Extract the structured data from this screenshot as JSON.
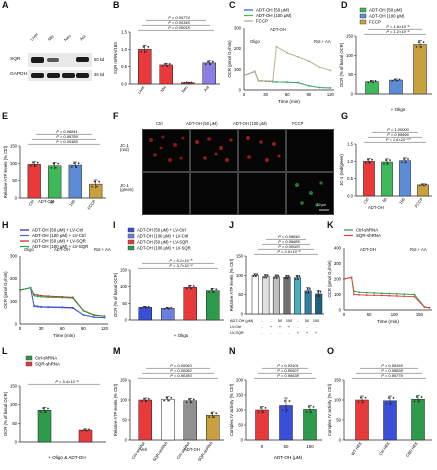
{
  "figure": {
    "panel_labels": [
      "A",
      "B",
      "C",
      "D",
      "E",
      "F",
      "G",
      "H",
      "I",
      "J",
      "K",
      "L",
      "M",
      "N",
      "O"
    ]
  },
  "panelA": {
    "lanes": [
      "Liver",
      "Mic",
      "Neu",
      "Ast"
    ],
    "rows": [
      "SQR",
      "GAPDH"
    ],
    "sizes": [
      "50 kd",
      "36 kd"
    ]
  },
  "panelF": {
    "columns": [
      "Ctrl",
      "ADT-OH (50 μM)",
      "ADT-OH (100 μM)",
      "FCCP"
    ],
    "rows": [
      "JC-1\n(red)",
      "JC-1\n(green)"
    ],
    "scale": "10 μm"
  },
  "annotations": {
    "oligo": "Oligo",
    "adtoh": "ADT-OH",
    "rotaa": "Rot + AA",
    "plus_oligo": "+ Oligo",
    "plus_oligo_adtoh": "+ Oligo & ADT-OH",
    "veh": "Veh",
    "adtoh_group": "ADT-OH",
    "adtoh_um": "ADT-OH (μM)",
    "lv_ctrl": "LV-Ctrl",
    "lv_sqr": "LV-SQR"
  },
  "chart_data": [
    {
      "panel": "B",
      "type": "bar",
      "categories": [
        "Liver",
        "Mic",
        "Neu",
        "Ast"
      ],
      "values": [
        1.0,
        0.55,
        0.04,
        0.61
      ],
      "errors": [
        0.12,
        0.05,
        0.01,
        0.06
      ],
      "colors": [
        "#e83a3a",
        "#e83a3a",
        "#e83a3a",
        "#8a7ee0"
      ],
      "ylabel": "SQR mRNA/18S",
      "ylim": [
        0,
        1.5
      ],
      "yticks": [
        "0.0",
        "0.5",
        "1.0",
        "1.5"
      ],
      "annotations": [
        "P = 0.00018",
        "P = 0.00345",
        "P = 0.00774"
      ]
    },
    {
      "panel": "C",
      "type": "line",
      "x": [
        0,
        15,
        20,
        25,
        30,
        35,
        40,
        45,
        60,
        75,
        90,
        105,
        120
      ],
      "series": [
        {
          "name": "ADT-OH (50 μM)",
          "color": "#3a4fd8",
          "values": [
            70,
            90,
            45,
            44,
            43,
            42,
            40,
            39,
            38,
            36,
            20,
            12,
            10
          ]
        },
        {
          "name": "ADT-OH (100 μM)",
          "color": "#3fb85a",
          "values": [
            70,
            90,
            45,
            44,
            43,
            42,
            40,
            39,
            37,
            35,
            20,
            12,
            10
          ]
        },
        {
          "name": "FCCP",
          "color": "#b8a887",
          "values": [
            70,
            90,
            45,
            44,
            43,
            42,
            44,
            210,
            180,
            160,
            140,
            110,
            95
          ]
        }
      ],
      "xlabel": "Time (min)",
      "ylabel": "OCR (pmol O₂/min)",
      "xticks": [
        "0",
        "30",
        "60",
        "90",
        "120"
      ],
      "yticks": [
        "0",
        "100",
        "200",
        "300"
      ],
      "ylim": [
        0,
        300
      ],
      "xlim": [
        0,
        125
      ]
    },
    {
      "panel": "D",
      "type": "bar",
      "categories": [
        "ADT-OH (50 μM)",
        "ADT-OH (100 μM)",
        "FCCP"
      ],
      "values": [
        32,
        36,
        128
      ],
      "errors": [
        3,
        3,
        10
      ],
      "colors": [
        "#3fb85a",
        "#5a8cd8",
        "#c8a040"
      ],
      "ylabel": "OCR (% of basal OCR)",
      "ylim": [
        0,
        150
      ],
      "yticks": [
        "0",
        "50",
        "100",
        "150"
      ],
      "annotations": [
        "P = 1.2×10⁻⁶",
        "P = 1.6×10⁻⁶"
      ],
      "xlabel": "+ Oligo"
    },
    {
      "panel": "E",
      "type": "bar",
      "categories": [
        "Ctrl",
        "50",
        "100",
        "FCCP"
      ],
      "values": [
        97,
        93,
        95,
        40
      ],
      "errors": [
        8,
        10,
        9,
        12
      ],
      "colors": [
        "#e83a3a",
        "#3fb85a",
        "#5a8cd8",
        "#c8a040"
      ],
      "ylabel": "Relative ATP levels (% Ctrl)",
      "ylim": [
        0,
        150
      ],
      "yticks": [
        "0",
        "50",
        "100",
        "150"
      ],
      "annotations": [
        "P = 0.00485",
        "P = 0.99789",
        "P = 0.96841"
      ]
    },
    {
      "panel": "G",
      "type": "bar",
      "categories": [
        "Ctrl",
        "50",
        "100",
        "FCCP"
      ],
      "values": [
        1.0,
        0.98,
        1.02,
        0.32
      ],
      "errors": [
        0.08,
        0.09,
        0.08,
        0.03
      ],
      "colors": [
        "#e83a3a",
        "#3fb85a",
        "#5a8cd8",
        "#c8a040"
      ],
      "ylabel": "JC-1 (red/green)",
      "ylim": [
        0,
        1.5
      ],
      "yticks": [
        "0.0",
        "0.5",
        "1.0",
        "1.5"
      ],
      "annotations": [
        "P = 1.6×10⁻¹⁰",
        "P = 0.99696",
        "P = 1.00000"
      ]
    },
    {
      "panel": "H",
      "type": "line",
      "x": [
        0,
        15,
        20,
        25,
        30,
        40,
        60,
        75,
        90,
        105,
        120
      ],
      "series": [
        {
          "name": "ADT-OH (50 μM) + LV-Ctrl",
          "color": "#2222aa",
          "values": [
            150,
            160,
            80,
            78,
            76,
            75,
            74,
            72,
            40,
            30,
            28
          ]
        },
        {
          "name": "ADT-OH (100 μM) + LV-Ctrl",
          "color": "#4466dd",
          "values": [
            150,
            160,
            78,
            76,
            74,
            73,
            72,
            70,
            40,
            30,
            28
          ]
        },
        {
          "name": "ADT-OH (50 μM) + LV-SQR",
          "color": "#cc2222",
          "values": [
            150,
            160,
            130,
            128,
            125,
            123,
            120,
            118,
            60,
            40,
            35
          ]
        },
        {
          "name": "ADT-OH (100 μM) + LV-SQR",
          "color": "#22aa44",
          "values": [
            150,
            160,
            125,
            122,
            120,
            118,
            116,
            114,
            58,
            38,
            34
          ]
        }
      ],
      "xlabel": "Time (min)",
      "ylabel": "OCR (pmol O₂/min)",
      "xticks": [
        "0",
        "30",
        "60",
        "90",
        "120"
      ],
      "yticks": [
        "0",
        "100",
        "200",
        "300"
      ],
      "ylim": [
        0,
        300
      ],
      "xlim": [
        0,
        125
      ]
    },
    {
      "panel": "I",
      "type": "bar",
      "categories": [
        "50+LV-Ctrl",
        "100+LV-Ctrl",
        "50+LV-SQR",
        "100+LV-SQR"
      ],
      "values": [
        38,
        35,
        98,
        88
      ],
      "errors": [
        3,
        3,
        6,
        7
      ],
      "colors": [
        "#3a4fd8",
        "#6b7fe0",
        "#e83a3a",
        "#2e9b4a"
      ],
      "ylabel": "OCR (% of basal OCR)",
      "ylim": [
        0,
        150
      ],
      "yticks": [
        "0",
        "50",
        "100",
        "150"
      ],
      "annotations": [
        "P = 3.7×10⁻⁴",
        "P = 5.1×10⁻⁵"
      ],
      "xlabel": "+ Oligo"
    },
    {
      "panel": "J",
      "type": "bar",
      "categories": [
        "1",
        "2",
        "3",
        "4",
        "5",
        "6",
        "7"
      ],
      "values": [
        100,
        97,
        96,
        95,
        94,
        60,
        52
      ],
      "errors": [
        4,
        5,
        5,
        5,
        6,
        8,
        9
      ],
      "colors": [
        "#ffffff",
        "#e0e0e0",
        "#c0c0c0",
        "#707070",
        "#4ab0c0",
        "#2e7fa0",
        "#1f5f80"
      ],
      "ylabel": "Relative ATP levels (% Ctrl)",
      "ylim": [
        0,
        150
      ],
      "yticks": [
        "0",
        "50",
        "100",
        "150"
      ],
      "annotations": [
        "P = 2.0×10⁻⁶",
        "P = 0.00020",
        "P = 0.99685",
        "P = 0.99840"
      ],
      "row_labels": [
        "ADT-OH (μM)",
        "LV-Ctrl",
        "LV-SQR"
      ],
      "row_values": [
        [
          "-",
          "-",
          "50",
          "100",
          "-",
          "50",
          "100"
        ],
        [
          "-",
          "+",
          "+",
          "+",
          "-",
          "-",
          "-"
        ],
        [
          "-",
          "-",
          "-",
          "-",
          "+",
          "+",
          "+"
        ]
      ]
    },
    {
      "panel": "K",
      "type": "line",
      "x": [
        0,
        15,
        20,
        30,
        45,
        60,
        75,
        90,
        105,
        120,
        140,
        160,
        170
      ],
      "series": [
        {
          "name": "Ctrl-shRNA",
          "color": "#2e9b4a",
          "values": [
            200,
            210,
            120,
            115,
            112,
            110,
            108,
            106,
            104,
            102,
            100,
            20,
            15
          ]
        },
        {
          "name": "SQR-shRNA",
          "color": "#e83a3a",
          "values": [
            200,
            210,
            100,
            98,
            96,
            95,
            94,
            92,
            90,
            88,
            86,
            18,
            14
          ]
        }
      ],
      "xlabel": "Time (min)",
      "ylabel": "OCR (pmol O₂/min)",
      "xticks": [
        "0",
        "50",
        "100",
        "150"
      ],
      "yticks": [
        "0",
        "100",
        "200",
        "300",
        "400"
      ],
      "ylim": [
        0,
        400
      ],
      "xlim": [
        0,
        175
      ]
    },
    {
      "panel": "L",
      "type": "bar",
      "categories": [
        "Ctrl-shRNA",
        "SQR-shRNA"
      ],
      "values": [
        85,
        32
      ],
      "errors": [
        8,
        3
      ],
      "colors": [
        "#2e9b4a",
        "#e83a3a"
      ],
      "ylabel": "OCR (% of basal OCR)",
      "ylim": [
        0,
        150
      ],
      "yticks": [
        "0",
        "50",
        "100",
        "150"
      ],
      "annotations": [
        "P = 5.4×10⁻⁶"
      ],
      "xlabel": "+ Oligo & ADT-OH"
    },
    {
      "panel": "M",
      "type": "bar",
      "categories": [
        "Ctrl-shRNA",
        "SQR-shRNA",
        "Ctrl-shRNA",
        "SQR-shRNA"
      ],
      "values": [
        100,
        102,
        98,
        62
      ],
      "errors": [
        5,
        6,
        6,
        8
      ],
      "colors": [
        "#e83a3a",
        "#ffffff",
        "#909090",
        "#c8a040"
      ],
      "ylabel": "Relative ATP levels (% Ctrl)",
      "ylim": [
        0,
        150
      ],
      "yticks": [
        "0",
        "50",
        "100",
        "150"
      ],
      "annotations": [
        "P = 0.90383",
        "P = 0.00052",
        "P = 0.00063"
      ]
    },
    {
      "panel": "N",
      "type": "bar",
      "categories": [
        "0",
        "50",
        "100"
      ],
      "values": [
        100,
        115,
        102
      ],
      "errors": [
        12,
        25,
        14
      ],
      "colors": [
        "#e83a3a",
        "#3a4fd8",
        "#2e9b4a"
      ],
      "ylabel": "Complex IV activity (% Ctrl)",
      "ylim": [
        0,
        200
      ],
      "yticks": [
        "0",
        "50",
        "100",
        "150",
        "200"
      ],
      "annotations": [
        "P = 0.99638",
        "P = 0.80507",
        "P = 0.93101"
      ],
      "xlabel": "ADT-OH (μM)"
    },
    {
      "panel": "O",
      "type": "bar",
      "categories": [
        "WT HEK",
        "Ctrl HEK",
        "CBS HEK"
      ],
      "values": [
        100,
        98,
        102
      ],
      "errors": [
        10,
        12,
        9
      ],
      "colors": [
        "#e83a3a",
        "#3a4fd8",
        "#2e9b4a"
      ],
      "ylabel": "Complex IV activity (% Ctrl)",
      "ylim": [
        0,
        150
      ],
      "yticks": [
        "0",
        "50",
        "100",
        "150"
      ],
      "annotations": [
        "P = 0.99779",
        "P = 0.99838",
        "P = 0.99165"
      ]
    }
  ]
}
